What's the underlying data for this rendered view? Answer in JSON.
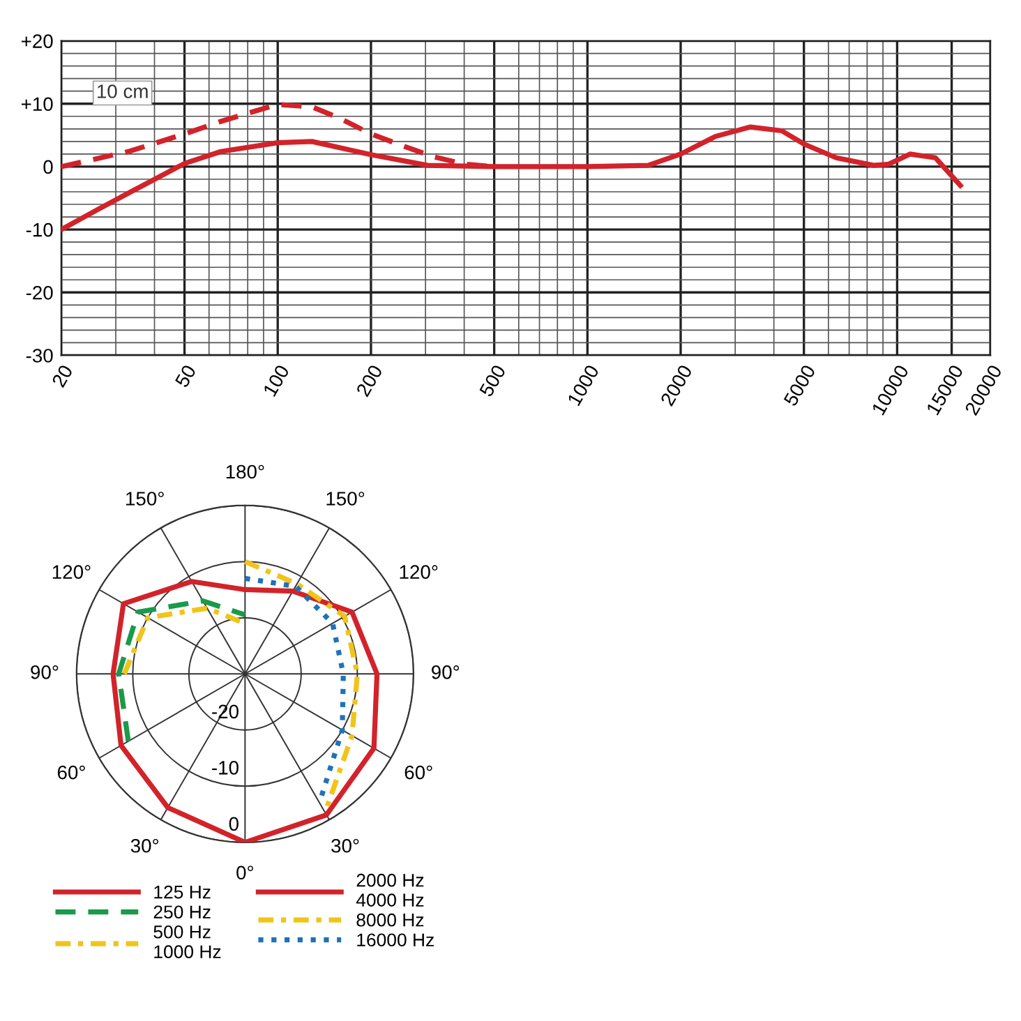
{
  "chart_data": [
    {
      "type": "line",
      "log": "x",
      "grid": true,
      "legend": false,
      "xlim": [
        20,
        20000
      ],
      "xticks": [
        20,
        50,
        100,
        200,
        500,
        1000,
        2000,
        5000,
        10000,
        15000,
        20000
      ],
      "ylim": [
        -30,
        20
      ],
      "yticks": [
        {
          "value": 20,
          "label": "+20"
        },
        {
          "value": 10,
          "label": "+10"
        },
        0,
        {
          "value": -10,
          "label": "-10"
        },
        {
          "value": -20,
          "label": "-20"
        },
        {
          "value": -30,
          "label": "-30"
        }
      ],
      "series": [
        {
          "color": "#d2232a",
          "line_style": "solid",
          "x": [
            20,
            26.5,
            33,
            50,
            65.6,
            100,
            129,
            200,
            305,
            500,
            1000,
            1570,
            2000,
            2590,
            3360,
            4240,
            5000,
            6360,
            8400,
            9400,
            11000,
            13300,
            16000
          ],
          "values": [
            -10,
            -6.7,
            -4.2,
            0.5,
            2.4,
            3.8,
            4,
            1.9,
            0.2,
            0,
            0,
            0.2,
            2,
            4.8,
            6.3,
            5.7,
            3.6,
            1.4,
            0.2,
            0.4,
            2,
            1.4,
            -3
          ]
        },
        {
          "name": "10 cm",
          "color": "#d2232a",
          "line_style": "dashed",
          "x": [
            20,
            33,
            50,
            65.6,
            100,
            129,
            160,
            200,
            260,
            317,
            400,
            500
          ],
          "values": [
            0,
            2.4,
            5.2,
            7.2,
            9.9,
            9.5,
            7.6,
            5.2,
            3.1,
            1.6,
            0.4,
            0
          ]
        }
      ]
    },
    {
      "type": "radar",
      "ylim": [
        -30,
        0
      ],
      "yticks": [
        {
          "value": -20,
          "label": "-20"
        },
        {
          "value": -10,
          "label": "-10"
        },
        0
      ],
      "legend": "bottom",
      "categories": [
        "180°",
        "150°",
        "120°",
        "90°",
        "60°",
        "30°",
        "0°",
        "30°",
        "60°",
        "90°",
        "120°",
        "150°"
      ],
      "series": [
        {
          "name": "125 Hz",
          "color": "#d2232a",
          "line_style": "solid",
          "values": [
            -15,
            null,
            null,
            null,
            null,
            null,
            0,
            -2.5,
            -4.5,
            -6.5,
            -5,
            -11
          ]
        },
        {
          "name": "250 Hz",
          "color": "#1a9a4a",
          "line_style": "dashed",
          "values": [
            -19.5,
            null,
            null,
            null,
            null,
            null,
            null,
            null,
            -6,
            -7.5,
            -8,
            -15
          ]
        },
        {
          "name": "500 Hz\n1000 Hz",
          "color": "#f0c419",
          "line_style": "dashdot",
          "values": [
            -21,
            null,
            null,
            null,
            null,
            null,
            null,
            null,
            null,
            -8.5,
            -10,
            -16.5
          ]
        },
        {
          "name": "2000 Hz\n4000 Hz",
          "color": "#d2232a",
          "line_style": "solid",
          "values": [
            -15,
            -13,
            -8,
            -6.5,
            -3.5,
            -1,
            0,
            null,
            null,
            null,
            null,
            null
          ]
        },
        {
          "name": "8000 Hz",
          "color": "#f0c419",
          "line_style": "dashdot",
          "values": [
            -10,
            -11.5,
            -9.5,
            -10,
            -8,
            -1.5,
            null,
            null,
            null,
            null,
            null,
            null
          ]
        },
        {
          "name": "16000 Hz",
          "color": "#1f72b8",
          "line_style": "dotted",
          "values": [
            -13,
            -12,
            -12,
            -12.5,
            -10,
            -3.5,
            null,
            null,
            null,
            null,
            null,
            null
          ]
        }
      ]
    }
  ]
}
